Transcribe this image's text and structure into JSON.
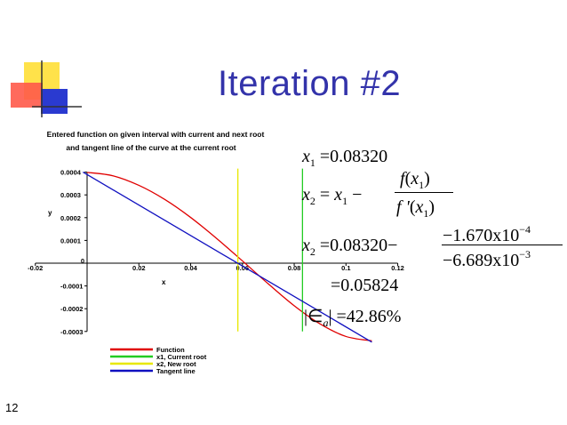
{
  "slide": {
    "title": "Iteration #2",
    "number": "12"
  },
  "math": {
    "x1_eq": "=0.08320",
    "newton_eq": "=",
    "minus": "−",
    "num_f": "f",
    "den_f": "f '",
    "x2_eq2": "=0.08320−",
    "num_val": "−1.670x10",
    "num_exp": "−4",
    "den_val": "−6.689x10",
    "den_exp": "−3",
    "result": "=0.05824",
    "error": "=42.86%",
    "x": "x",
    "sub1": "1",
    "sub2": "2",
    "suba": "a"
  },
  "chart_data": {
    "type": "line",
    "title": "Entered function on given interval with current and next root",
    "subtitle": "and tangent line of the curve at the current root",
    "xlabel": "x",
    "ylabel": "y",
    "xlim": [
      -0.02,
      0.12
    ],
    "ylim": [
      -0.0003,
      0.0004
    ],
    "xticks": [
      -0.02,
      0,
      0.02,
      0.04,
      0.06,
      0.08,
      0.1,
      0.12
    ],
    "xtick_labels": [
      "-0.02",
      "0",
      "0.02",
      "0.04",
      "0.06",
      "0.08",
      "0.1",
      "0.12"
    ],
    "yticks": [
      0.0004,
      0.0003,
      0.0002,
      0.0001,
      -0.0001,
      -0.0002,
      -0.0003
    ],
    "ytick_labels": [
      "0.0004",
      "0.0003",
      "0.0002",
      "0.0001",
      "-0.0001",
      "-0.0002",
      "-0.0003"
    ],
    "series": [
      {
        "name": "Function",
        "color": "#e00000",
        "kind": "curve",
        "x": [
          0,
          0.01,
          0.02,
          0.03,
          0.04,
          0.05,
          0.06,
          0.07,
          0.08,
          0.09,
          0.1,
          0.11
        ],
        "y": [
          0.000399,
          0.000384,
          0.000342,
          0.00028,
          0.000201,
          0.000109,
          1e-05,
          -9.1e-05,
          -0.000187,
          -0.000267,
          -0.000322,
          -0.000341
        ]
      },
      {
        "name": "x1, Current root",
        "color": "#22cc22",
        "kind": "vline",
        "x": 0.0832
      },
      {
        "name": "x2, New root",
        "color": "#e8e800",
        "kind": "vline",
        "x": 0.05824
      },
      {
        "name": "Tangent line",
        "color": "#1010c0",
        "kind": "line",
        "x": [
          -0.0016,
          0.11
        ],
        "y": [
          0.0004,
          -0.000347
        ]
      }
    ],
    "legend_position": "bottom"
  }
}
